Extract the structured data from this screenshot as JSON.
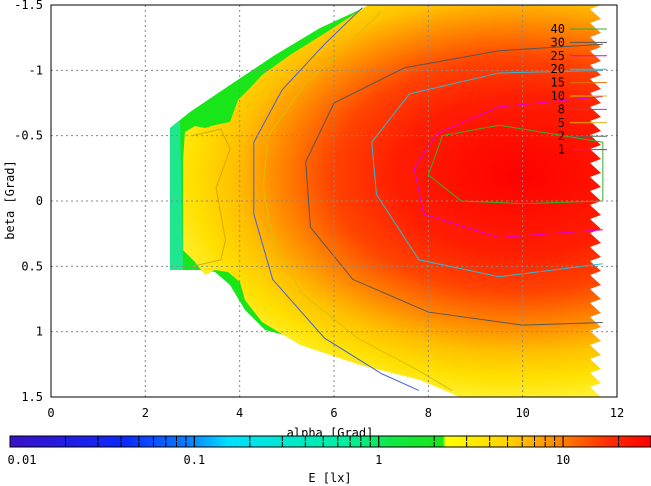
{
  "chart_data": {
    "type": "heatmap",
    "title": "",
    "xlabel": "alpha [Grad]",
    "ylabel": "beta [Grad]",
    "xlim": [
      0,
      12
    ],
    "ylim": [
      1.5,
      -1.5
    ],
    "x_ticks": [
      "0",
      "2",
      "4",
      "6",
      "8",
      "10",
      "12"
    ],
    "y_ticks": [
      "-1.5",
      "-1",
      "-0.5",
      "0",
      "0.5",
      "1",
      "1.5"
    ],
    "grid": true,
    "colorbar": {
      "label": "E [lx]",
      "scale": "log",
      "range": [
        0.01,
        30
      ],
      "ticks": [
        "0.01",
        "0.1",
        "1",
        "10"
      ],
      "colors": [
        "#3a10c8",
        "#0a4aff",
        "#00c8ff",
        "#00f0b0",
        "#19e619",
        "#ffff00",
        "#ffd000",
        "#ff8000",
        "#ff2a00",
        "#ff0000"
      ]
    },
    "contour_levels": [
      {
        "name": "40",
        "color": "#2db42d"
      },
      {
        "name": "30",
        "color": "#555555"
      },
      {
        "name": "25",
        "color": "#e000e0"
      },
      {
        "name": "20",
        "color": "#30b8d8"
      },
      {
        "name": "15",
        "color": "#e07000"
      },
      {
        "name": "10",
        "color": "#d8c000"
      },
      {
        "name": "8",
        "color": "#4060e0"
      },
      {
        "name": "5",
        "color": "#d8a800"
      },
      {
        "name": "2",
        "color": "#606060"
      },
      {
        "name": "1",
        "color": "#e000e0"
      }
    ],
    "contours": [
      {
        "level": "40",
        "points": [
          [
            8.0,
            -0.2
          ],
          [
            8.3,
            -0.5
          ],
          [
            9.5,
            -0.58
          ],
          [
            11.7,
            -0.45
          ],
          [
            11.7,
            0.0
          ],
          [
            10,
            0.02
          ],
          [
            8.7,
            0.0
          ],
          [
            8.0,
            -0.2
          ]
        ]
      },
      {
        "level": "20",
        "points": [
          [
            11.7,
            -1.0
          ],
          [
            9.5,
            -0.98
          ],
          [
            7.6,
            -0.82
          ],
          [
            6.8,
            -0.45
          ],
          [
            6.9,
            -0.05
          ],
          [
            7.8,
            0.45
          ],
          [
            9.5,
            0.58
          ],
          [
            11.7,
            0.48
          ]
        ]
      },
      {
        "level": "25",
        "points": [
          [
            11.7,
            -0.8
          ],
          [
            9.5,
            -0.72
          ],
          [
            8.2,
            -0.52
          ],
          [
            7.7,
            -0.25
          ],
          [
            7.9,
            0.1
          ],
          [
            9.5,
            0.28
          ],
          [
            11.7,
            0.22
          ]
        ]
      },
      {
        "level": "30",
        "points": [
          [
            11.7,
            -1.2
          ],
          [
            9.5,
            -1.15
          ],
          [
            7.5,
            -1.02
          ],
          [
            6.0,
            -0.75
          ],
          [
            5.4,
            -0.3
          ],
          [
            5.5,
            0.2
          ],
          [
            6.4,
            0.6
          ],
          [
            8.0,
            0.85
          ],
          [
            10,
            0.95
          ],
          [
            11.7,
            0.93
          ]
        ]
      },
      {
        "level": "10",
        "points": [
          [
            7.0,
            -1.45
          ],
          [
            6.3,
            -1.2
          ],
          [
            5.4,
            -0.9
          ],
          [
            4.6,
            -0.5
          ],
          [
            4.5,
            -0.1
          ],
          [
            4.7,
            0.3
          ],
          [
            5.3,
            0.7
          ],
          [
            6.5,
            1.05
          ],
          [
            7.8,
            1.3
          ],
          [
            8.5,
            1.45
          ]
        ]
      },
      {
        "level": "8",
        "points": [
          [
            6.6,
            -1.48
          ],
          [
            5.8,
            -1.2
          ],
          [
            4.9,
            -0.85
          ],
          [
            4.3,
            -0.45
          ],
          [
            4.3,
            0.1
          ],
          [
            4.7,
            0.6
          ],
          [
            5.8,
            1.05
          ],
          [
            7.0,
            1.32
          ],
          [
            7.8,
            1.45
          ]
        ]
      },
      {
        "level": "5",
        "points": [
          [
            3.0,
            -0.5
          ],
          [
            3.6,
            -0.55
          ],
          [
            3.8,
            -0.4
          ],
          [
            3.5,
            -0.1
          ],
          [
            3.7,
            0.3
          ],
          [
            3.6,
            0.45
          ],
          [
            3.0,
            0.5
          ]
        ]
      }
    ]
  }
}
